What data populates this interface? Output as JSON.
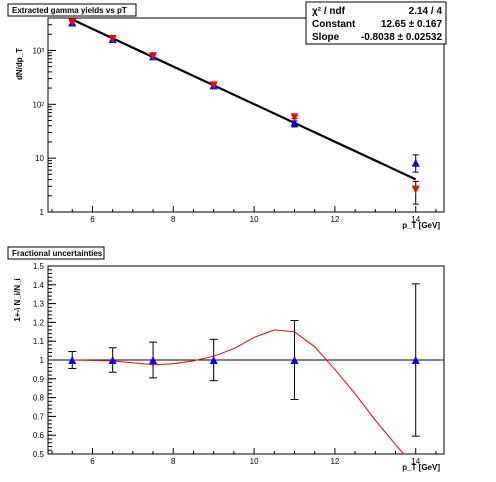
{
  "chart_data": [
    {
      "type": "scatter",
      "title": "Extracted gamma yields vs pT",
      "xlabel": "p_T [GeV]",
      "ylabel": "dN/dp_T",
      "xlim": [
        4.9,
        14.7
      ],
      "ylim": [
        1,
        4000
      ],
      "yscale": "log",
      "grid": false,
      "x_ticks": [
        6,
        8,
        10,
        12,
        14
      ],
      "y_ticks": [
        {
          "value": 1,
          "label": "1"
        },
        {
          "value": 10,
          "label": "10"
        },
        {
          "value": 100,
          "label": "10²"
        },
        {
          "value": 1000,
          "label": "10³"
        }
      ],
      "series": [
        {
          "marker": "triangle-down",
          "color": "#ff0000",
          "x": [
            5.5,
            6.5,
            7.5,
            9.0,
            11.0,
            14.0
          ],
          "y": [
            3300,
            1630,
            780,
            225,
            57,
            2.6
          ],
          "yerr_low": [
            3000,
            1480,
            700,
            200,
            49,
            1.4
          ],
          "yerr_high": [
            3500,
            1780,
            860,
            250,
            66,
            3.7
          ]
        },
        {
          "marker": "triangle-up",
          "color": "#0000ff",
          "x": [
            5.5,
            6.5,
            7.5,
            9.0,
            11.0,
            14.0
          ],
          "y": [
            3300,
            1630,
            780,
            225,
            46,
            8.2
          ],
          "yerr_low": [
            3000,
            1480,
            700,
            200,
            38,
            5.5
          ],
          "yerr_high": [
            3500,
            1780,
            860,
            250,
            54,
            11.5
          ]
        }
      ],
      "fit": {
        "function": "exponential",
        "x_range": [
          5.5,
          14.0
        ],
        "constant": 12.65,
        "slope": -0.8038,
        "color": "#000000"
      },
      "stats_box": {
        "rows": [
          {
            "label": "χ² / ndf",
            "value": "2.14 / 4"
          },
          {
            "label": "Constant",
            "value": "12.65 ± 0.167"
          },
          {
            "label": "Slope",
            "value": "-0.8038 ± 0.02532"
          }
        ]
      }
    },
    {
      "type": "scatter",
      "title": "Fractional uncertainties",
      "xlabel": "p_T [GeV]",
      "ylabel": "1+-\\ N_i/N_i",
      "xlim": [
        4.9,
        14.7
      ],
      "ylim": [
        0.5,
        1.5
      ],
      "grid": false,
      "x_ticks": [
        6,
        8,
        10,
        12,
        14
      ],
      "y_ticks": [
        0.5,
        0.6,
        0.7,
        0.8,
        0.9,
        1,
        1.1,
        1.2,
        1.3,
        1.4,
        1.5
      ],
      "reference_line": {
        "y": 1.0,
        "color": "#000000"
      },
      "series": [
        {
          "marker": "triangle-up",
          "color": "#0000ff",
          "x": [
            5.5,
            6.5,
            7.5,
            9.0,
            11.0,
            14.0
          ],
          "y": [
            1.0,
            1.0,
            1.0,
            1.0,
            1.0,
            1.0
          ],
          "err": [
            0.045,
            0.065,
            0.095,
            0.11,
            0.21,
            0.405
          ]
        }
      ],
      "curve": {
        "color": "#ff0000",
        "x": [
          5.5,
          6.5,
          7.0,
          7.5,
          8.0,
          8.5,
          9.0,
          9.5,
          10.0,
          10.5,
          11.0,
          11.5,
          12.0,
          12.5,
          13.0,
          13.5,
          13.7
        ],
        "y": [
          1.0,
          0.995,
          0.985,
          0.975,
          0.98,
          0.995,
          1.02,
          1.06,
          1.12,
          1.16,
          1.15,
          1.07,
          0.95,
          0.82,
          0.68,
          0.55,
          0.5
        ]
      }
    }
  ]
}
